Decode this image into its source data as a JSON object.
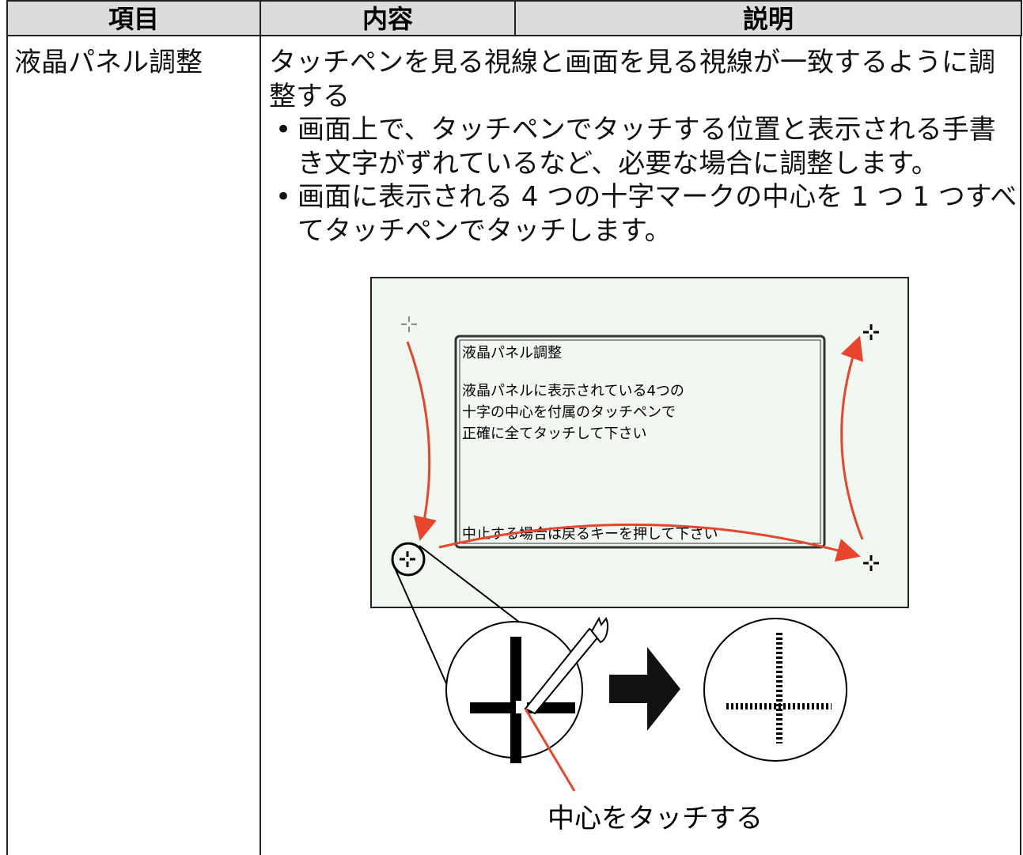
{
  "table": {
    "header": [
      "項目",
      "内容",
      "説明"
    ],
    "rows": [
      [
        "液晶パネル調整",
        {
          "text": "タッチペンを見る視線と画面を見る視線が一致するように調整する",
          "bullets": [
            "画面上で、タッチペンでタッチする位置と表示される手書き文字がずれているなど、必要な場合に調整します。",
            "画面に表示される 4 つの十字マークの中心を 1 つ 1 つすべてタッチペンでタッチします。"
          ]
        }
      ]
    ]
  },
  "illustration": {
    "screen": {
      "title": "液晶パネル調整",
      "lines": [
        "液晶パネルに表示されている4つの",
        "十字の中心を付属のタッチペンで",
        "正確に全てタッチして下さい"
      ],
      "footer": "中止する場合は戻るキーを押して下さい"
    },
    "caption": "中心をタッチする"
  }
}
